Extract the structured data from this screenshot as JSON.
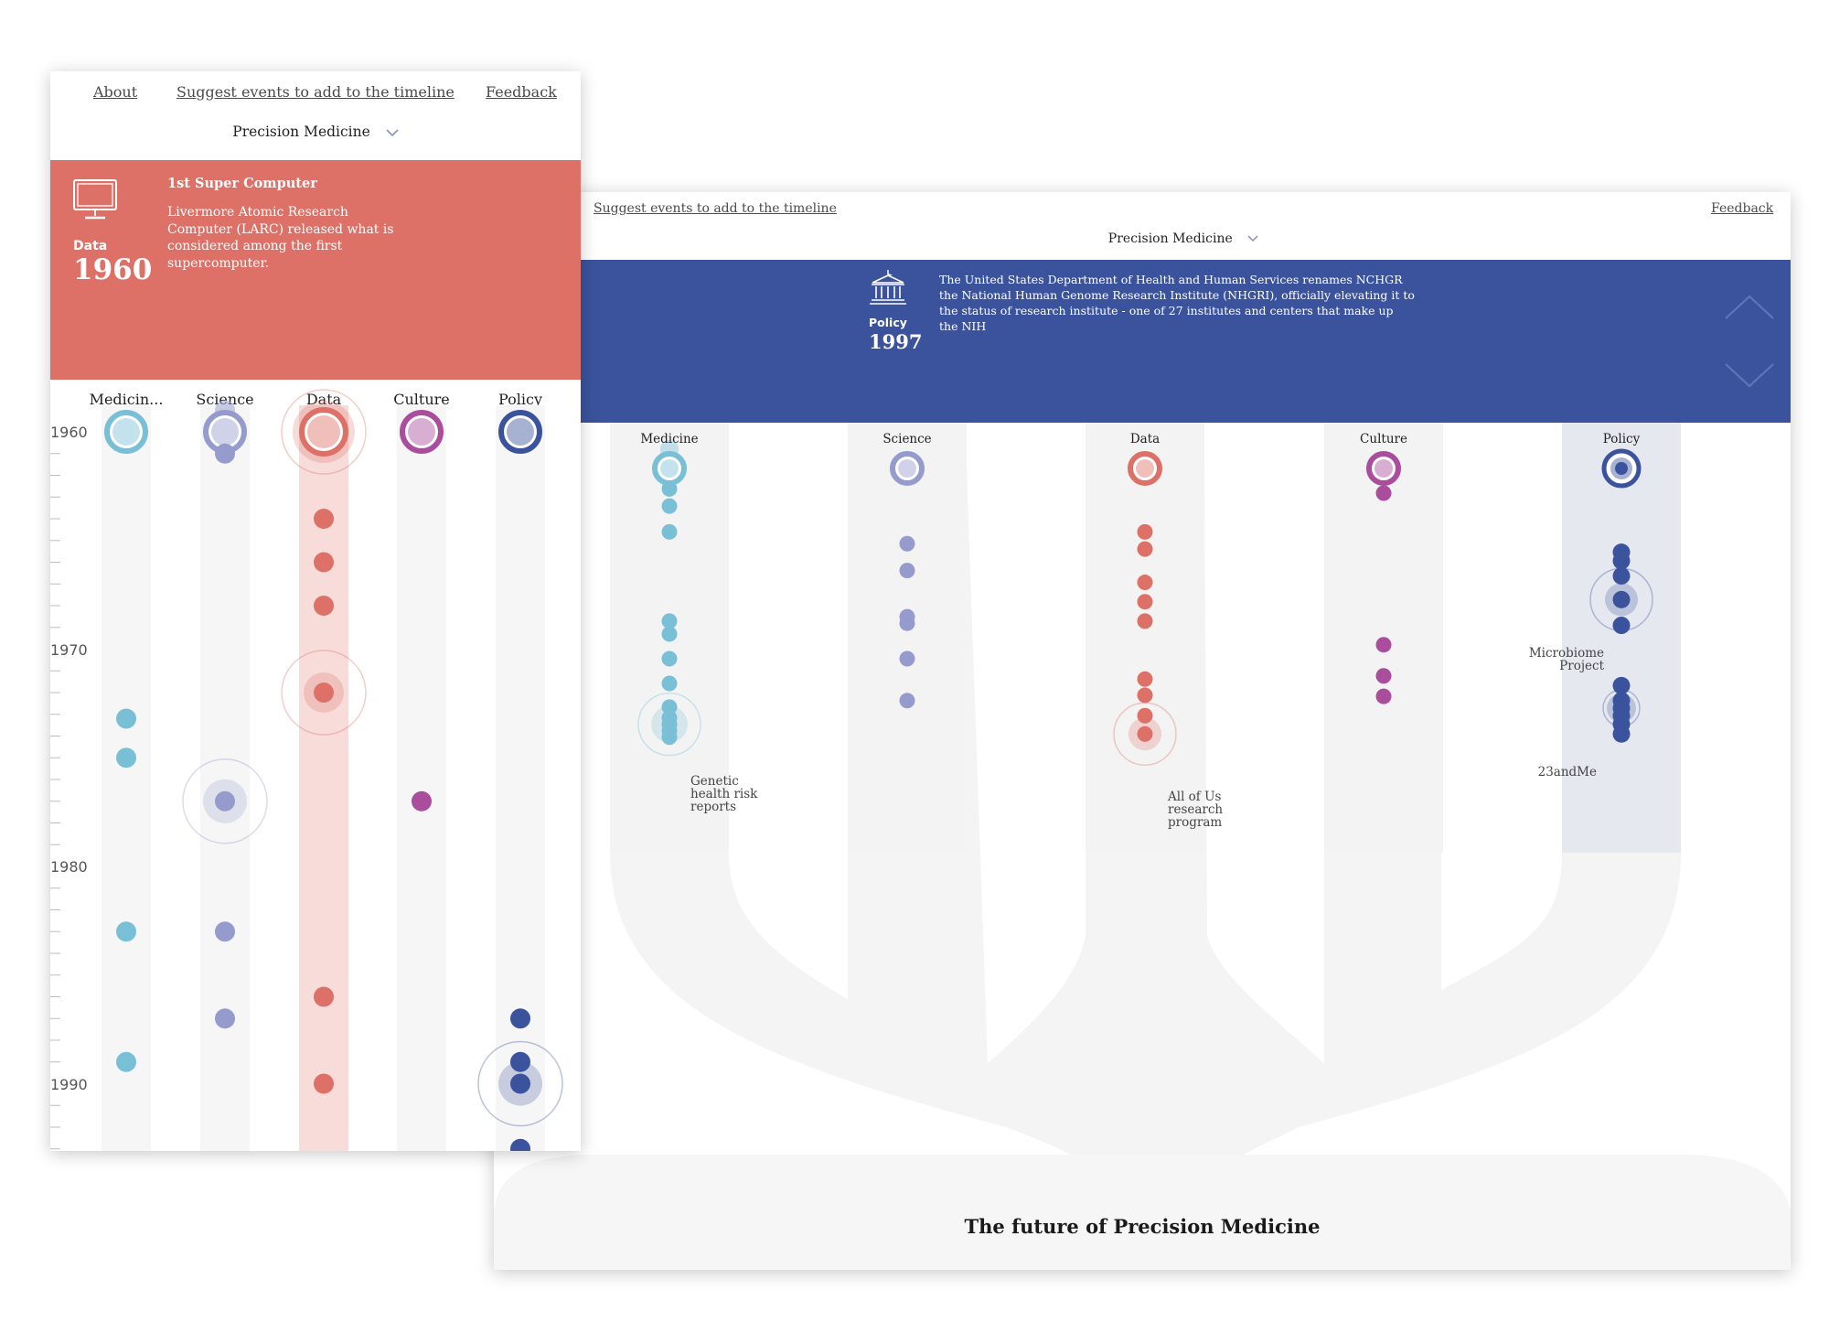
{
  "mobile": {
    "nav": {
      "about": "About",
      "suggest": "Suggest events to add to the timeline",
      "feedback": "Feedback"
    },
    "selector": {
      "label": "Precision Medicine"
    },
    "banner": {
      "color": "#dd7067",
      "icon": "monitor-icon",
      "category": "Data",
      "year": "1960",
      "title": "1st Super Computer",
      "description": "Livermore Atomic Research Computer (LARC) released what is considered among the first supercomputer."
    },
    "columns": [
      "Medicin...",
      "Science",
      "Data",
      "Culture",
      "Policy"
    ],
    "years": [
      "1960",
      "1970",
      "1980",
      "1990"
    ]
  },
  "desktop": {
    "nav": {
      "suggest": "Suggest events to add to the timeline",
      "feedback": "Feedback"
    },
    "selector": {
      "label": "Precision Medicine"
    },
    "banner": {
      "color": "#3b539c",
      "icon": "government-building-icon",
      "category": "Policy",
      "year": "1997",
      "description": "The United States Department of Health and Human Services renames NCHGR the National Human Genome Research Institute (NHGRI), officially elevating it to the status of research institute - one of 27 institutes and centers that make up the NIH"
    },
    "columns": [
      "Medicine",
      "Science",
      "Data",
      "Culture",
      "Policy"
    ],
    "annotations": {
      "genetic": "Genetic\nhealth risk\nreports",
      "allofus": "All of Us\nresearch\nprogram",
      "microbiome": "Microbiome\nProject",
      "twentythree": "23andMe"
    },
    "footer": {
      "title": "The future of Precision Medicine"
    }
  },
  "colors": {
    "medicine": "#79bfd6",
    "science": "#959bcd",
    "data": "#dd7067",
    "culture": "#a94d9c",
    "policy": "#3b539c",
    "lane": "#f6f6f6"
  }
}
